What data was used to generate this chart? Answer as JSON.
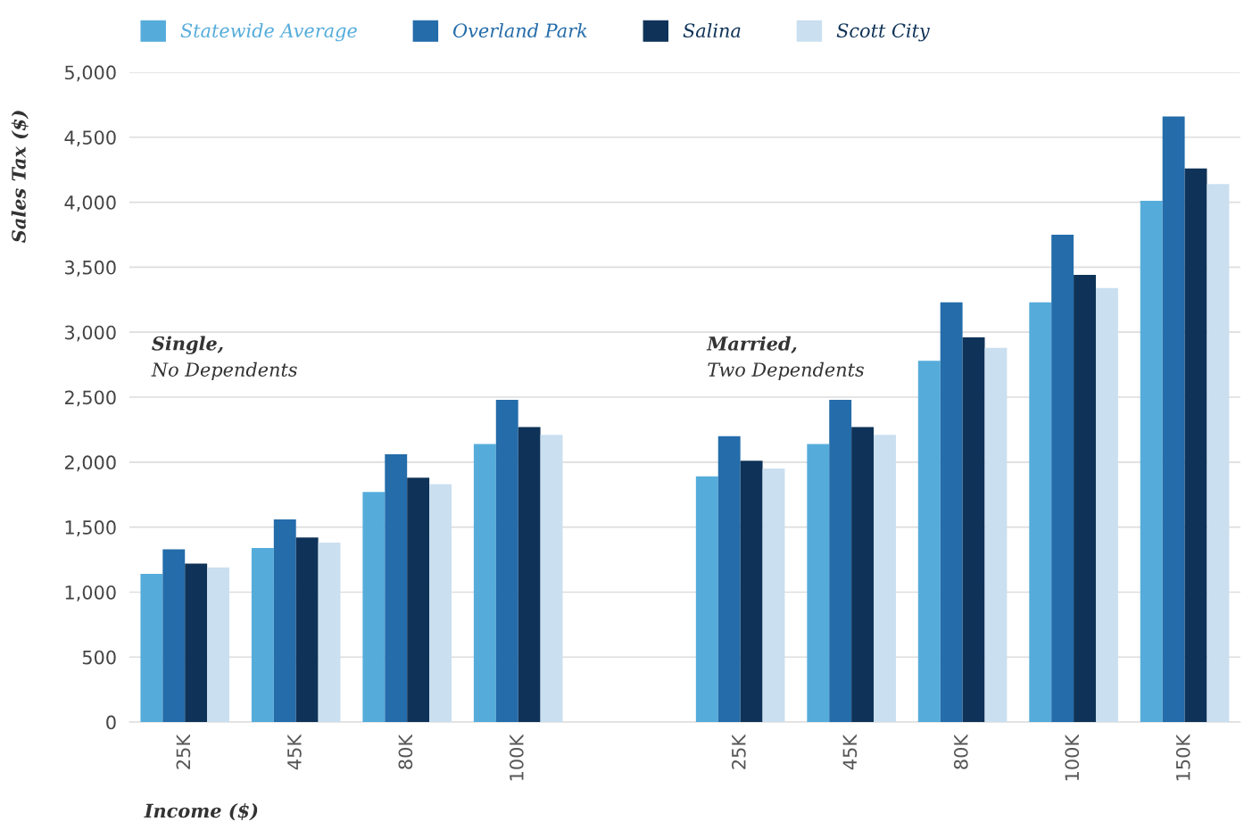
{
  "chart_data": {
    "type": "bar",
    "xlabel": "Income ($)",
    "ylabel": "Sales Tax ($)",
    "categories": [
      "25K",
      "45K",
      "80K",
      "100K",
      null,
      "25K",
      "45K",
      "80K",
      "100K",
      "150K"
    ],
    "series": [
      {
        "name": "Statewide Average",
        "color": "#55acdb",
        "values": [
          1140,
          1340,
          1770,
          2140,
          null,
          1890,
          2140,
          2780,
          3230,
          4010
        ]
      },
      {
        "name": "Overland Park",
        "color": "#246caa",
        "values": [
          1330,
          1560,
          2060,
          2480,
          null,
          2200,
          2480,
          3230,
          3750,
          4660
        ]
      },
      {
        "name": "Salina",
        "color": "#0f3358",
        "values": [
          1220,
          1420,
          1880,
          2270,
          null,
          2010,
          2270,
          2960,
          3440,
          4260
        ]
      },
      {
        "name": "Scott City",
        "color": "#cadff0",
        "values": [
          1190,
          1380,
          1830,
          2210,
          null,
          1950,
          2210,
          2880,
          3340,
          4140
        ]
      }
    ],
    "ylim": [
      0,
      5000
    ],
    "yticks": [
      {
        "value": 0,
        "label": "0"
      },
      {
        "value": 500,
        "label": "500"
      },
      {
        "value": 1000,
        "label": "1,000"
      },
      {
        "value": 1500,
        "label": "1,500"
      },
      {
        "value": 2000,
        "label": "2,000"
      },
      {
        "value": 2500,
        "label": "2,500"
      },
      {
        "value": 3000,
        "label": "3,000"
      },
      {
        "value": 3500,
        "label": "3,500"
      },
      {
        "value": 4000,
        "label": "4,000"
      },
      {
        "value": 4500,
        "label": "4,500"
      },
      {
        "value": 5000,
        "label": "5,000"
      }
    ],
    "grid": "y",
    "legend": "top left",
    "annotations": [
      [
        "Single,",
        "No Dependents"
      ],
      [
        "Married,",
        "Two Dependents"
      ]
    ]
  }
}
